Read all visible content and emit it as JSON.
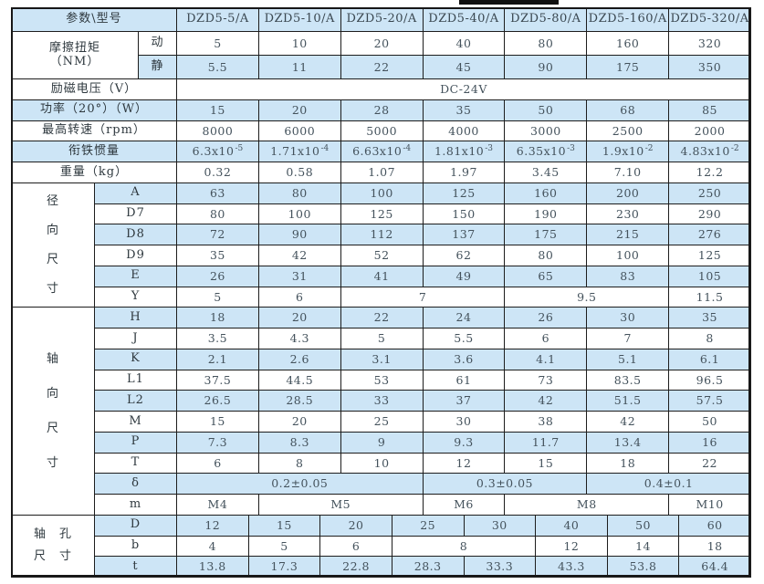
{
  "page": {
    "background": "#ffffff",
    "grid_color": "#1d1d1d",
    "shade_color": "#cde5f6",
    "number_text_color": "#44525c",
    "label_text_color": "#2e383e"
  },
  "table": {
    "header_label": "参数\\型号",
    "columns": [
      "DZD5-5/A",
      "DZD5-10/A",
      "DZD5-20/A",
      "DZD5-40/A",
      "DZD5-80/A",
      "DZD5-160/A",
      "DZD5-320/A"
    ],
    "rows": [
      {
        "label": "摩擦扭矩",
        "label2": "（NM）",
        "label_rows": 2,
        "sub": "动",
        "cells": [
          "5",
          "10",
          "20",
          "40",
          "80",
          "160",
          "320"
        ]
      },
      {
        "sub": "静",
        "cells": [
          "5.5",
          "11",
          "22",
          "45",
          "90",
          "175",
          "350"
        ]
      },
      {
        "label": "励磁电压（V）",
        "cells": [
          {
            "t": "DC-24V",
            "span": 7
          }
        ]
      },
      {
        "label": "功率（20°）（W）",
        "cells": [
          "15",
          "20",
          "28",
          "35",
          "50",
          "68",
          "85"
        ]
      },
      {
        "label": "最高转速（rpm）",
        "cells": [
          "8000",
          "6000",
          "5000",
          "4000",
          "3000",
          "2500",
          "2000"
        ]
      },
      {
        "label": "衔铁惯量",
        "cells": [
          {
            "t": "6.3x10",
            "sup": "-5"
          },
          {
            "t": "1.71x10",
            "sup": "-4"
          },
          {
            "t": "6.63x10",
            "sup": "-4"
          },
          {
            "t": "1.81x10",
            "sup": "-3"
          },
          {
            "t": "6.35x10",
            "sup": "-3"
          },
          {
            "t": "1.9x10",
            "sup": "-2"
          },
          {
            "t": "4.83x10",
            "sup": "-2"
          }
        ]
      },
      {
        "label": "重量（kg）",
        "cells": [
          "0.32",
          "0.58",
          "1.07",
          "1.97",
          "3.45",
          "7.10",
          "12.2"
        ]
      },
      {
        "section": "径向尺寸",
        "section_rows": 6,
        "sub": "A",
        "cells": [
          "63",
          "80",
          "100",
          "125",
          "160",
          "200",
          "250"
        ]
      },
      {
        "sub": "D7",
        "cells": [
          "80",
          "100",
          "125",
          "150",
          "190",
          "230",
          "290"
        ]
      },
      {
        "sub": "D8",
        "cells": [
          "72",
          "90",
          "112",
          "137",
          "175",
          "215",
          "276"
        ]
      },
      {
        "sub": "D9",
        "cells": [
          "35",
          "42",
          "52",
          "62",
          "80",
          "100",
          "125"
        ]
      },
      {
        "sub": "E",
        "cells": [
          "26",
          "31",
          "41",
          "49",
          "65",
          "83",
          "105"
        ]
      },
      {
        "sub": "Y",
        "cells": [
          "5",
          "6",
          {
            "t": "7",
            "span": 2
          },
          {
            "t": "9.5",
            "span": 2
          },
          "11.5"
        ]
      },
      {
        "section": "轴向尺寸",
        "section_rows": 10,
        "sub": "H",
        "cells": [
          "18",
          "20",
          "22",
          "24",
          "26",
          "30",
          "35"
        ]
      },
      {
        "sub": "J",
        "cells": [
          "3.5",
          "4.3",
          "5",
          "5.5",
          "6",
          "7",
          "8"
        ]
      },
      {
        "sub": "K",
        "cells": [
          "2.1",
          "2.6",
          "3.1",
          "3.6",
          "4.1",
          "5.1",
          "6.1"
        ]
      },
      {
        "sub": "L1",
        "cells": [
          "37.5",
          "44.5",
          "53",
          "61",
          "73",
          "83.5",
          "96.5"
        ]
      },
      {
        "sub": "L2",
        "cells": [
          "26.5",
          "28.5",
          "33",
          "37",
          "42",
          "51.5",
          "57.5"
        ]
      },
      {
        "sub": "M",
        "cells": [
          "15",
          "20",
          "25",
          "30",
          "38",
          "42",
          "50"
        ]
      },
      {
        "sub": "P",
        "cells": [
          "7.3",
          "8.3",
          "9",
          "9.3",
          "11.7",
          "13.4",
          "16"
        ]
      },
      {
        "sub": "T",
        "cells": [
          "6",
          "8",
          "10",
          "12",
          "15",
          "18",
          "22"
        ]
      },
      {
        "sub": "δ",
        "cells": [
          {
            "t": "0.2±0.05",
            "span": 3
          },
          {
            "t": "0.3±0.05",
            "span": 2
          },
          {
            "t": "0.4±0.1",
            "span": 2
          }
        ]
      },
      {
        "sub": "m",
        "cells": [
          "M4",
          {
            "t": "M5",
            "span": 2
          },
          "M6",
          {
            "t": "M8",
            "span": 2
          },
          "M10"
        ]
      },
      {
        "section": "轴孔尺寸",
        "section_rows": 3,
        "grid8": true,
        "sub": "D",
        "cells": [
          "12",
          "15",
          "20",
          "25",
          "30",
          "40",
          "50",
          "60"
        ]
      },
      {
        "grid8": true,
        "sub": "b",
        "cells": [
          "4",
          "5",
          "6",
          {
            "t": "8",
            "span": 2
          },
          "12",
          "14",
          "18"
        ]
      },
      {
        "grid8": true,
        "sub": "t",
        "cells": [
          "13.8",
          "17.3",
          "22.8",
          "28.3",
          "33.3",
          "43.3",
          "53.8",
          "64.4"
        ]
      }
    ]
  }
}
